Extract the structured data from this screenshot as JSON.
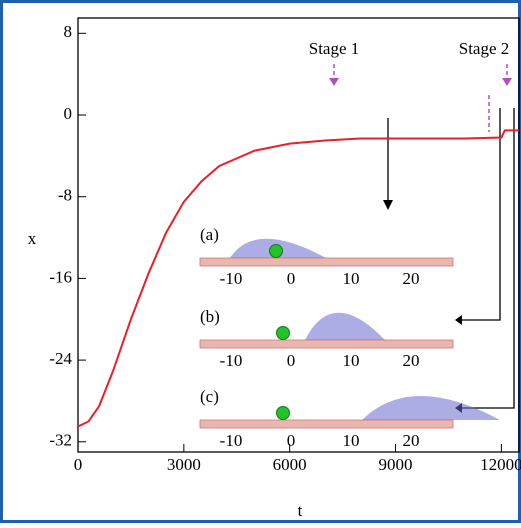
{
  "chart_data": {
    "type": "line",
    "x_label": "t",
    "y_label": "x",
    "x": [
      0,
      300,
      600,
      1000,
      1500,
      2000,
      2500,
      3000,
      3500,
      4000,
      5000,
      6000,
      7000,
      8000,
      9000,
      10000,
      11000,
      12000,
      12100,
      12500
    ],
    "series": [
      {
        "color": "#e8202a",
        "values": [
          -30.5,
          -30,
          -28.5,
          -25,
          -20,
          -15.5,
          -11.5,
          -8.5,
          -6.5,
          -5,
          -3.5,
          -2.8,
          -2.5,
          -2.3,
          -2.3,
          -2.3,
          -2.3,
          -2.2,
          -1.5,
          -1.5
        ]
      }
    ],
    "xlim": [
      0,
      12500
    ],
    "xticks": [
      0,
      3000,
      6000,
      9000,
      12000
    ],
    "ylim": [
      -33,
      9.5
    ],
    "yticks": [
      8,
      0,
      -8,
      -16,
      -24,
      -32
    ],
    "annotations": [
      "Stage 1",
      "Stage 2"
    ],
    "insets": [
      {
        "label": "(a)",
        "ticks": [
          -10,
          0,
          10,
          20
        ]
      },
      {
        "label": "(b)",
        "ticks": [
          -10,
          0,
          10,
          20
        ]
      },
      {
        "label": "(c)",
        "ticks": [
          -10,
          0,
          10,
          20
        ]
      }
    ]
  }
}
